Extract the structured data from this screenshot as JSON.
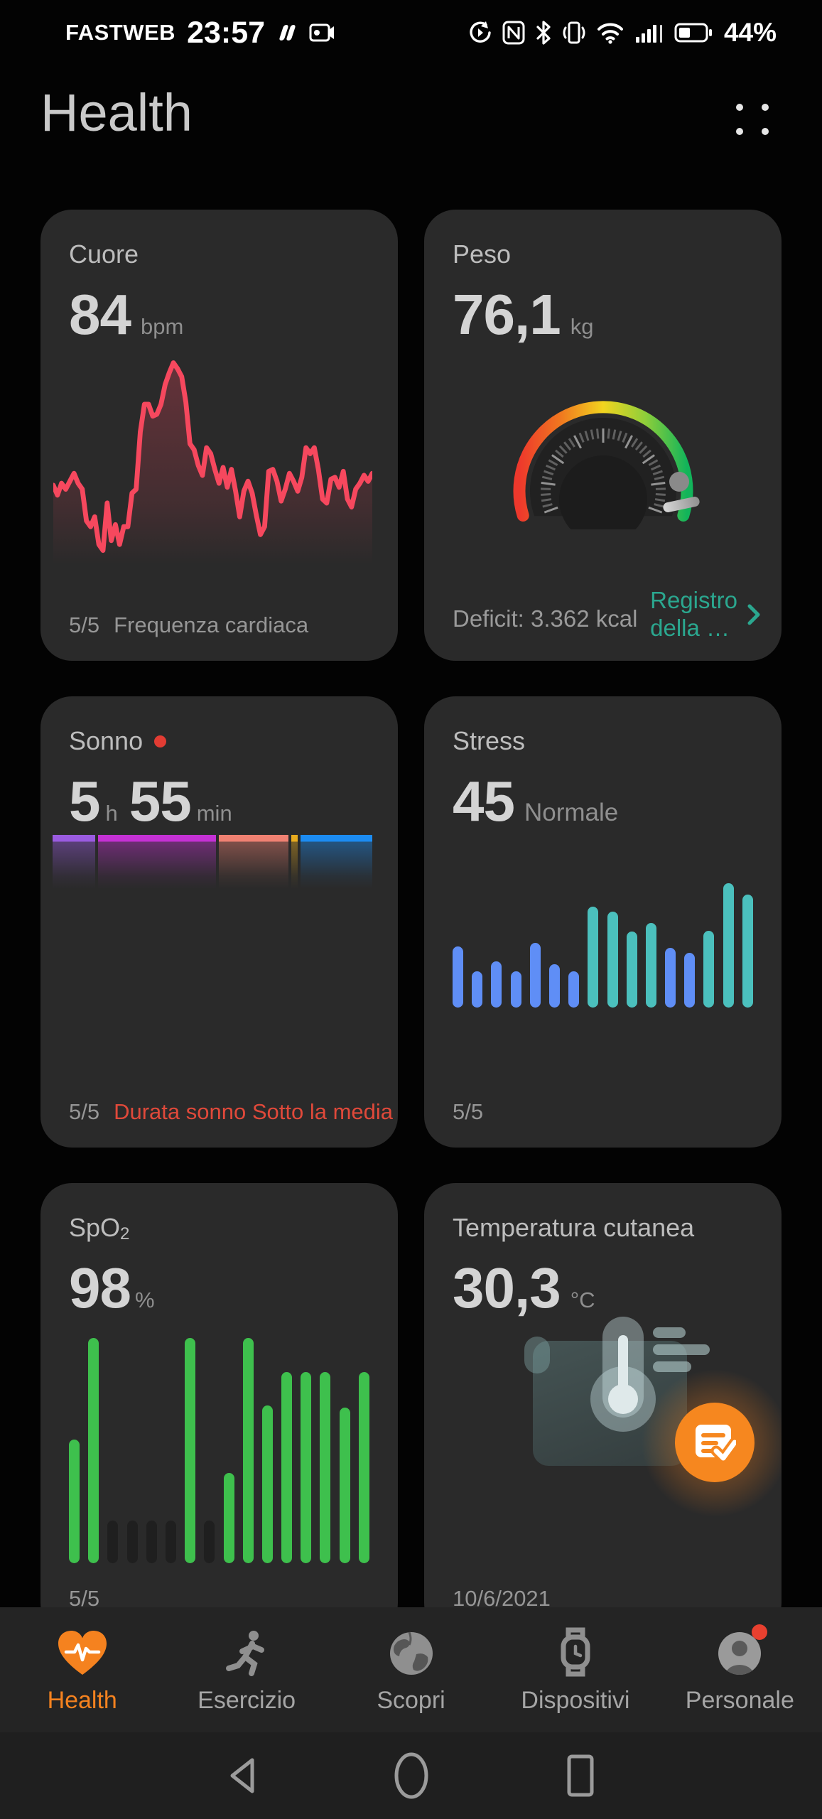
{
  "status_bar": {
    "carrier": "FASTWEB",
    "time": "23:57",
    "battery": "44%"
  },
  "header": {
    "title": "Health"
  },
  "cards": {
    "heart": {
      "title": "Cuore",
      "value": "84",
      "unit": "bpm",
      "footer_ratio": "5/5",
      "footer_label": "Frequenza cardiaca"
    },
    "weight": {
      "title": "Peso",
      "value": "76,1",
      "unit": "kg",
      "deficit": "Deficit: 3.362 kcal",
      "link_line1": "Registro",
      "link_line2": "della …"
    },
    "sleep": {
      "title": "Sonno",
      "h_value": "5",
      "h_unit": "h",
      "m_value": "55",
      "m_unit": "min",
      "footer_ratio": "5/5",
      "footer_alert": "Durata sonno Sotto la media"
    },
    "stress": {
      "title": "Stress",
      "value": "45",
      "status": "Normale",
      "footer_ratio": "5/5"
    },
    "spo2": {
      "title_main": "SpO",
      "title_sub": "2",
      "value": "98",
      "unit": "%",
      "footer_ratio": "5/5"
    },
    "temperature": {
      "title": "Temperatura cutanea",
      "value": "30,3",
      "unit": "°C",
      "footer_date": "10/6/2021"
    }
  },
  "nav": {
    "items": [
      {
        "label": "Health",
        "active": true
      },
      {
        "label": "Esercizio",
        "active": false
      },
      {
        "label": "Scopri",
        "active": false
      },
      {
        "label": "Dispositivi",
        "active": false
      },
      {
        "label": "Personale",
        "active": false,
        "badge": true
      }
    ]
  },
  "colors": {
    "accent_orange": "#f5821f",
    "alert_red": "#e0493a",
    "link_teal": "#2ba78f",
    "heart_line": "#f6485e",
    "stress_blue": "#5f8ef6",
    "stress_teal": "#4bc0bd",
    "spo2_green": "#3ec04d",
    "card_bg": "#2a2a2a"
  },
  "chart_data": [
    {
      "type": "line",
      "name": "heart_rate",
      "title": "Frequenza cardiaca (trend)",
      "line_color": "#f6485e",
      "fill": "fading dark red below line",
      "axes_visible": false,
      "values": [
        36,
        31,
        37,
        34,
        38,
        42,
        37,
        34,
        18,
        15,
        20,
        6,
        3,
        27,
        8,
        16,
        6,
        15,
        15,
        32,
        34,
        63,
        77,
        77,
        71,
        72,
        77,
        87,
        93,
        98,
        95,
        91,
        78,
        57,
        54,
        46,
        41,
        55,
        52,
        44,
        37,
        45,
        35,
        44,
        33,
        20,
        33,
        38,
        32,
        21,
        11,
        15,
        43,
        44,
        38,
        28,
        34,
        42,
        38,
        33,
        40,
        55,
        52,
        55,
        44,
        29,
        27,
        39,
        40,
        35,
        43,
        29,
        25,
        34,
        37,
        41,
        38,
        42
      ]
    },
    {
      "type": "bar",
      "name": "sleep_stages",
      "title": "Fasi del sonno (barra orizzontale impilata)",
      "orientation": "horizontal-stacked",
      "segments": [
        {
          "color": "#9a5be0",
          "width_pct": 13.4
        },
        {
          "color": "#c431d4",
          "width_pct": 36.9
        },
        {
          "color": "#ef8172",
          "width_pct": 21.7
        },
        {
          "color": "#e8ab1e",
          "width_pct": 2.1
        },
        {
          "color": "#1c8cf2",
          "width_pct": 22.4
        }
      ]
    },
    {
      "type": "bar",
      "name": "stress",
      "title": "Stress (barre giornata)",
      "ymax": 100,
      "palette": {
        "blue": "#5f8ef6",
        "teal": "#4bc0bd"
      },
      "values": [
        49,
        29,
        37,
        29,
        52,
        35,
        29,
        81,
        77,
        61,
        68,
        48,
        44,
        62,
        100,
        91
      ],
      "colors": [
        "blue",
        "blue",
        "blue",
        "blue",
        "blue",
        "blue",
        "blue",
        "teal",
        "teal",
        "teal",
        "teal",
        "blue",
        "blue",
        "teal",
        "teal",
        "teal"
      ]
    },
    {
      "type": "bar",
      "name": "spo2",
      "title": "SpO2 (barre giornata)",
      "ymax": 100,
      "palette": {
        "green": "#3ec04d",
        "empty": "#1f1f1f"
      },
      "values": [
        55,
        100,
        19,
        19,
        19,
        19,
        100,
        19,
        40,
        100,
        70,
        85,
        85,
        85,
        69,
        85
      ],
      "colors": [
        "green",
        "green",
        "empty",
        "empty",
        "empty",
        "empty",
        "green",
        "empty",
        "green",
        "green",
        "green",
        "green",
        "green",
        "green",
        "green",
        "green"
      ]
    }
  ]
}
